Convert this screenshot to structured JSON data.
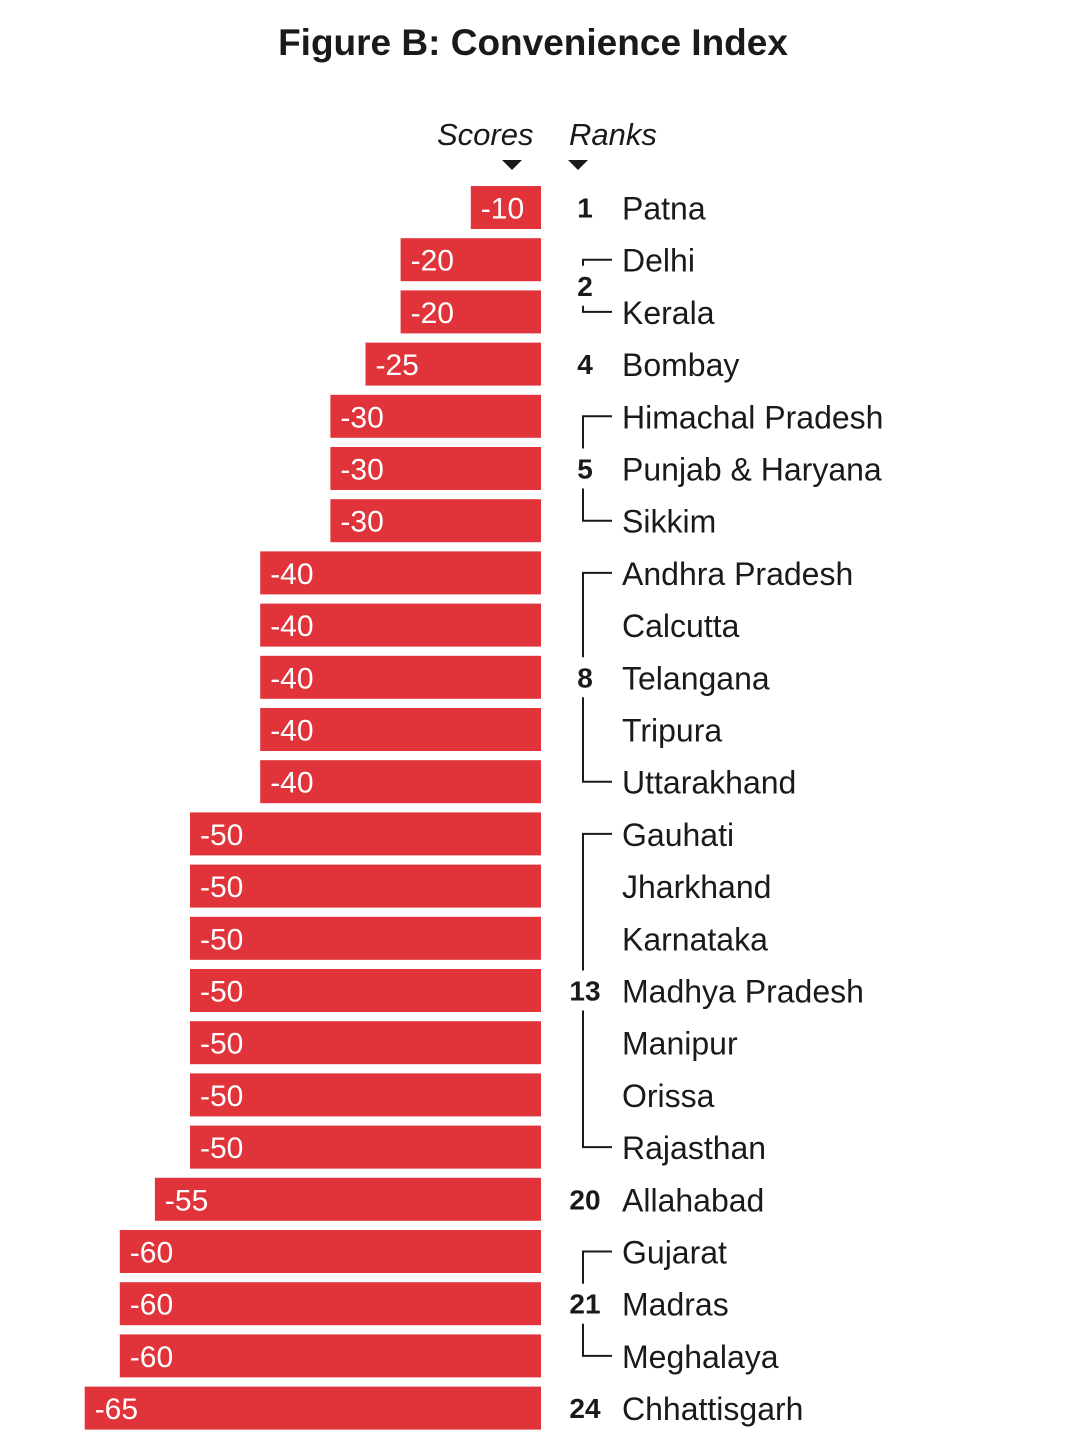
{
  "chart_data": {
    "type": "bar",
    "title": "Figure B: Convenience Index",
    "column_headers": {
      "scores": "Scores",
      "ranks": "Ranks"
    },
    "categories": [
      "Patna",
      "Delhi",
      "Kerala",
      "Bombay",
      "Himachal Pradesh",
      "Punjab & Haryana",
      "Sikkim",
      "Andhra Pradesh",
      "Calcutta",
      "Telangana",
      "Tripura",
      "Uttarakhand",
      "Gauhati",
      "Jharkhand",
      "Karnataka",
      "Madhya Pradesh",
      "Manipur",
      "Orissa",
      "Rajasthan",
      "Allahabad",
      "Gujarat",
      "Madras",
      "Meghalaya",
      "Chhattisgarh"
    ],
    "values": [
      -10,
      -20,
      -20,
      -25,
      -30,
      -30,
      -30,
      -40,
      -40,
      -40,
      -40,
      -40,
      -50,
      -50,
      -50,
      -50,
      -50,
      -50,
      -50,
      -55,
      -60,
      -60,
      -60,
      -65
    ],
    "ranks": [
      {
        "rank": "1",
        "start": 0,
        "end": 0
      },
      {
        "rank": "2",
        "start": 1,
        "end": 2
      },
      {
        "rank": "4",
        "start": 3,
        "end": 3
      },
      {
        "rank": "5",
        "start": 4,
        "end": 6
      },
      {
        "rank": "8",
        "start": 7,
        "end": 11
      },
      {
        "rank": "13",
        "start": 12,
        "end": 18
      },
      {
        "rank": "20",
        "start": 19,
        "end": 19
      },
      {
        "rank": "21",
        "start": 20,
        "end": 22
      },
      {
        "rank": "24",
        "start": 23,
        "end": 23
      }
    ],
    "bar_color": "#e0333a",
    "orientation": "horizontal",
    "grid": false
  }
}
